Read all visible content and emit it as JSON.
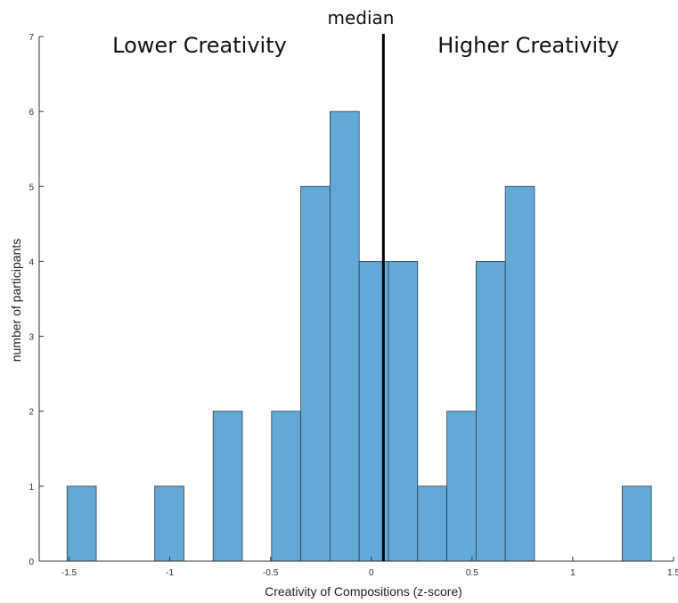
{
  "chart_data": {
    "type": "bar",
    "xlabel": "Creativity of Compositions (z-score)",
    "ylabel": "number of participants",
    "xlim": [
      -1.65,
      1.5
    ],
    "ylim": [
      0,
      7
    ],
    "bin_width": 0.145,
    "bars": [
      {
        "x0": -1.51,
        "x1": -1.365,
        "value": 1
      },
      {
        "x0": -1.075,
        "x1": -0.93,
        "value": 1
      },
      {
        "x0": -0.785,
        "x1": -0.64,
        "value": 2
      },
      {
        "x0": -0.495,
        "x1": -0.35,
        "value": 2
      },
      {
        "x0": -0.35,
        "x1": -0.205,
        "value": 5
      },
      {
        "x0": -0.205,
        "x1": -0.06,
        "value": 6
      },
      {
        "x0": -0.06,
        "x1": 0.085,
        "value": 4
      },
      {
        "x0": 0.085,
        "x1": 0.23,
        "value": 4
      },
      {
        "x0": 0.23,
        "x1": 0.375,
        "value": 1
      },
      {
        "x0": 0.375,
        "x1": 0.52,
        "value": 2
      },
      {
        "x0": 0.52,
        "x1": 0.665,
        "value": 4
      },
      {
        "x0": 0.665,
        "x1": 0.81,
        "value": 5
      },
      {
        "x0": 1.245,
        "x1": 1.39,
        "value": 1
      }
    ],
    "x_ticks": [
      {
        "value": -1.5,
        "label": "-1.5"
      },
      {
        "value": -1,
        "label": "-1"
      },
      {
        "value": -0.5,
        "label": "-0.5"
      },
      {
        "value": 0,
        "label": "0"
      },
      {
        "value": 0.5,
        "label": "0.5"
      },
      {
        "value": 1,
        "label": "1"
      },
      {
        "value": 1.5,
        "label": "1.5"
      }
    ],
    "y_ticks": [
      {
        "value": 0,
        "label": "0"
      },
      {
        "value": 1,
        "label": "1"
      },
      {
        "value": 2,
        "label": "2"
      },
      {
        "value": 3,
        "label": "3"
      },
      {
        "value": 4,
        "label": "4"
      },
      {
        "value": 5,
        "label": "5"
      },
      {
        "value": 6,
        "label": "6"
      },
      {
        "value": 7,
        "label": "7"
      }
    ],
    "median": 0.06,
    "median_label": "median",
    "annotations": {
      "left": "Lower Creativity",
      "right": "Higher Creativity"
    },
    "bar_color": "#64a8d7",
    "bar_edge_color": "#2c3e50",
    "grid": false,
    "legend": "none"
  }
}
